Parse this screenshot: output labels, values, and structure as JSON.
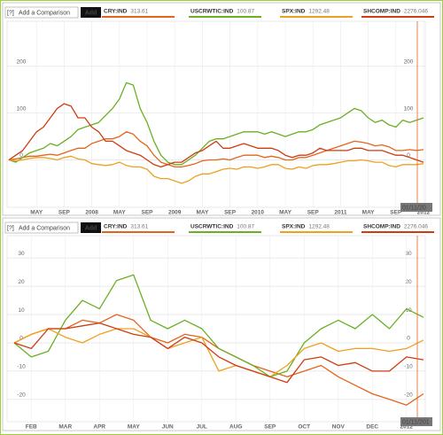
{
  "chart_data": [
    {
      "type": "line",
      "help": "[?]",
      "comparison_prompt": "Add a Comparison",
      "button": "Add",
      "print": "Print",
      "date_label": "01/11/20",
      "categories": [
        null,
        null,
        null,
        null,
        "MAY",
        null,
        null,
        null,
        "SEP",
        null,
        null,
        null,
        "2008",
        null,
        null,
        null,
        "MAY",
        null,
        null,
        null,
        "SEP",
        null,
        null,
        null,
        "2009",
        null,
        null,
        null,
        "MAY",
        null,
        null,
        null,
        "SEP",
        null,
        null,
        null,
        "2010",
        null,
        null,
        null,
        "MAY",
        null,
        null,
        null,
        "SEP",
        null,
        null,
        null,
        "2011",
        null,
        null,
        null,
        "MAY",
        null,
        null,
        null,
        "SEP",
        null,
        null,
        null,
        "2012"
      ],
      "series": [
        {
          "name": "CRY:IND",
          "last": 313.61,
          "color": "#e4641c",
          "values": [
            0,
            2,
            5,
            8,
            8,
            10,
            12,
            10,
            15,
            20,
            25,
            25,
            35,
            40,
            45,
            45,
            50,
            60,
            55,
            40,
            30,
            10,
            -5,
            -10,
            -15,
            -15,
            -12,
            -8,
            -2,
            0,
            0,
            2,
            0,
            5,
            10,
            10,
            10,
            5,
            8,
            5,
            0,
            0,
            5,
            5,
            10,
            15,
            20,
            25,
            30,
            35,
            40,
            38,
            35,
            30,
            32,
            28,
            20,
            20,
            22,
            20,
            22
          ]
        },
        {
          "name": "USCRWTIC:IND",
          "last": 100.87,
          "color": "#6ab023",
          "values": [
            0,
            -5,
            5,
            15,
            20,
            25,
            35,
            30,
            40,
            50,
            65,
            70,
            75,
            80,
            95,
            110,
            130,
            165,
            160,
            110,
            80,
            40,
            10,
            -5,
            -10,
            -10,
            0,
            10,
            25,
            40,
            45,
            45,
            50,
            55,
            60,
            60,
            60,
            55,
            60,
            55,
            50,
            55,
            60,
            60,
            65,
            75,
            80,
            85,
            90,
            100,
            110,
            105,
            90,
            80,
            85,
            75,
            70,
            85,
            80,
            85,
            90
          ]
        },
        {
          "name": "SPX:IND",
          "last": 1292.48,
          "color": "#f0a020",
          "values": [
            0,
            -2,
            0,
            3,
            5,
            5,
            3,
            0,
            5,
            8,
            2,
            0,
            -8,
            -10,
            -12,
            -10,
            -5,
            -12,
            -15,
            -15,
            -20,
            -35,
            -40,
            -40,
            -45,
            -50,
            -45,
            -35,
            -30,
            -30,
            -25,
            -20,
            -18,
            -20,
            -15,
            -15,
            -18,
            -15,
            -10,
            -10,
            -18,
            -20,
            -15,
            -18,
            -12,
            -10,
            -10,
            -8,
            -5,
            -2,
            -2,
            0,
            -2,
            -5,
            -5,
            -12,
            -15,
            -10,
            -10,
            -10,
            -8
          ]
        },
        {
          "name": "SHCOMP:IND",
          "last": 2276.046,
          "color": "#cc3d12",
          "values": [
            0,
            10,
            20,
            40,
            60,
            70,
            90,
            110,
            120,
            115,
            90,
            90,
            70,
            60,
            40,
            40,
            30,
            20,
            15,
            10,
            0,
            -10,
            -15,
            -10,
            -5,
            -5,
            5,
            15,
            20,
            30,
            40,
            25,
            25,
            30,
            35,
            30,
            25,
            25,
            25,
            20,
            10,
            5,
            10,
            10,
            15,
            25,
            20,
            20,
            20,
            20,
            25,
            25,
            20,
            20,
            20,
            15,
            10,
            10,
            5,
            0,
            -5
          ]
        }
      ],
      "ylim": [
        -90,
        285
      ],
      "yticks": [
        0,
        100,
        200
      ],
      "grid": true
    },
    {
      "type": "line",
      "help": "[?]",
      "comparison_prompt": "Add a Comparison",
      "button": "Add",
      "date_label": "01/11/201",
      "categories": [
        null,
        "FEB",
        null,
        "MAR",
        null,
        "APR",
        null,
        "MAY",
        null,
        "JUN",
        null,
        "JUL",
        null,
        "AUG",
        null,
        "SEP",
        null,
        "OCT",
        null,
        "NOV",
        null,
        "DEC",
        null,
        "2012",
        null
      ],
      "series": [
        {
          "name": "CRY:IND",
          "last": 313.61,
          "color": "#e4641c",
          "values": [
            0,
            3,
            5,
            5,
            8,
            7,
            10,
            8,
            2,
            0,
            3,
            2,
            -2,
            -5,
            -8,
            -10,
            -12,
            -10,
            -8,
            -12,
            -15,
            -18,
            -20,
            -22,
            -18
          ]
        },
        {
          "name": "USCRWTIC:IND",
          "last": 100.87,
          "color": "#6ab023",
          "values": [
            0,
            -5,
            -3,
            8,
            15,
            12,
            22,
            24,
            8,
            5,
            8,
            5,
            -2,
            -5,
            -8,
            -12,
            -10,
            0,
            5,
            8,
            5,
            10,
            5,
            12,
            9
          ]
        },
        {
          "name": "SPX:IND",
          "last": 1292.48,
          "color": "#f0a020",
          "values": [
            0,
            3,
            5,
            2,
            0,
            3,
            5,
            5,
            2,
            -2,
            0,
            2,
            -10,
            -8,
            -10,
            -12,
            -8,
            -2,
            0,
            -3,
            -2,
            -2,
            -3,
            -2,
            1
          ]
        },
        {
          "name": "SHCOMP:IND",
          "last": 2276.046,
          "color": "#cc3d12",
          "values": [
            0,
            -2,
            5,
            5,
            6,
            7,
            5,
            3,
            2,
            -2,
            2,
            0,
            -5,
            -8,
            -10,
            -12,
            -14,
            -6,
            -5,
            -8,
            -7,
            -10,
            -10,
            -5,
            -6
          ]
        }
      ],
      "ylim": [
        -26,
        36
      ],
      "yticks": [
        -20,
        -10,
        0,
        10,
        20,
        30
      ],
      "grid": true
    }
  ]
}
